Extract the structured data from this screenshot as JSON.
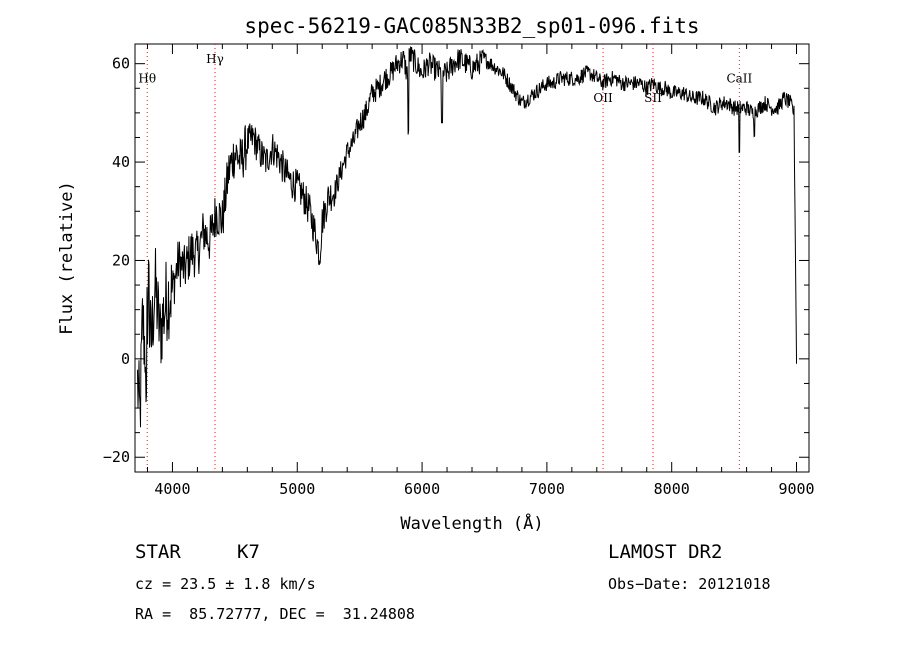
{
  "chart_data": {
    "type": "line",
    "title": "spec-56219-GAC085N33B2_sp01-096.fits",
    "xlabel": "Wavelength (Å)",
    "ylabel": "Flux (relative)",
    "xlim": [
      3700,
      9100
    ],
    "ylim": [
      -23,
      64
    ],
    "x_ticks": [
      4000,
      5000,
      6000,
      7000,
      8000,
      9000
    ],
    "y_ticks": [
      -20,
      0,
      20,
      40,
      60
    ],
    "x_tick_labels": [
      "4000",
      "5000",
      "6000",
      "7000",
      "8000",
      "9000"
    ],
    "y_tick_labels": [
      "−20",
      "0",
      "20",
      "40",
      "60"
    ],
    "grid": false,
    "series": [
      {
        "x": [
          3720,
          3740,
          3760,
          3780,
          3800,
          3830,
          3860,
          3900,
          3950,
          4000,
          4050,
          4100,
          4150,
          4200,
          4250,
          4300,
          4350,
          4400,
          4450,
          4500,
          4550,
          4600,
          4650,
          4700,
          4750,
          4800,
          4850,
          4900,
          4950,
          5000,
          5050,
          5100,
          5150,
          5180,
          5200,
          5250,
          5300,
          5350,
          5400,
          5450,
          5500,
          5550,
          5600,
          5650,
          5700,
          5750,
          5800,
          5850,
          5880,
          5900,
          5950,
          6000,
          6050,
          6100,
          6150,
          6200,
          6250,
          6300,
          6350,
          6400,
          6450,
          6500,
          6550,
          6600,
          6650,
          6700,
          6750,
          6800,
          6850,
          6900,
          6950,
          7000,
          7050,
          7100,
          7150,
          7200,
          7250,
          7300,
          7350,
          7400,
          7450,
          7500,
          7550,
          7600,
          7650,
          7700,
          7750,
          7800,
          7850,
          7900,
          7950,
          8000,
          8050,
          8100,
          8150,
          8200,
          8250,
          8300,
          8350,
          8400,
          8450,
          8500,
          8550,
          8600,
          8650,
          8700,
          8750,
          8800,
          8850,
          8900,
          8950,
          8980,
          9000
        ],
        "y": [
          -5,
          -12,
          8,
          2,
          10,
          3,
          15,
          5,
          12,
          14,
          20,
          18,
          22,
          21,
          26,
          24,
          30,
          28,
          38,
          42,
          40,
          44,
          45,
          42,
          40,
          43,
          41,
          38,
          36,
          35,
          33,
          30,
          25,
          21,
          28,
          33,
          34,
          38,
          42,
          44,
          48,
          50,
          54,
          55,
          57,
          58,
          60,
          61,
          58,
          62,
          60,
          58,
          60,
          59,
          58,
          58,
          60,
          61,
          60,
          59,
          60,
          61,
          60,
          59,
          58,
          56,
          54,
          52,
          53,
          54,
          55,
          56,
          56,
          57,
          57,
          57,
          57,
          58,
          58,
          57,
          56,
          57,
          57,
          56,
          56,
          56,
          56,
          55,
          56,
          55,
          55,
          54,
          54,
          54,
          53,
          53,
          53,
          52,
          51,
          52,
          52,
          51,
          51,
          51,
          50,
          51,
          52,
          51,
          51,
          53,
          52,
          50,
          0
        ]
      }
    ],
    "annotations": [
      {
        "label": "Hθ",
        "x": 3798,
        "y": 57
      },
      {
        "label": "Hγ",
        "x": 4341,
        "y": 61
      },
      {
        "label": "OII",
        "x": 7450,
        "y": 53
      },
      {
        "label": "SII",
        "x": 7850,
        "y": 53
      },
      {
        "label": "CaII",
        "x": 8542,
        "y": 57
      }
    ]
  },
  "info": {
    "object_type": "STAR",
    "subclass": "K7",
    "survey": "LAMOST DR2",
    "obs_date": "Obs−Date: 20121018",
    "cz": "cz = 23.5 ± 1.8 km/s",
    "coords": "RA =  85.72777, DEC =  31.24808"
  }
}
